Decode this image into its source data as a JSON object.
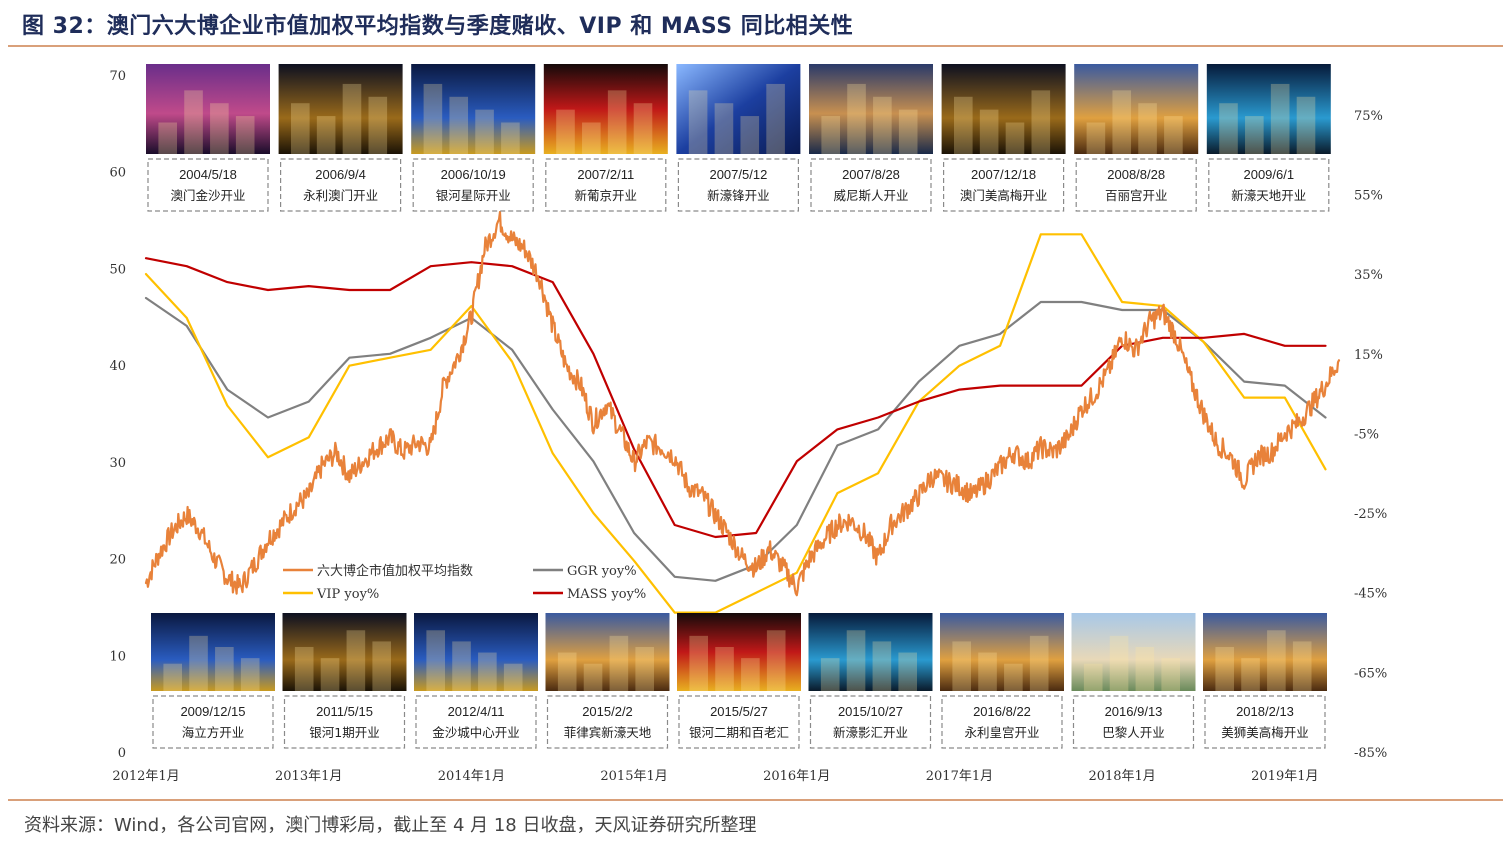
{
  "figure": {
    "title": "图 32：澳门六大博企业市值加权平均指数与季度赌收、VIP 和 MASS 同比相关性",
    "source": "资料来源：Wind，各公司官网，澳门博彩局，截止至 4 月 18 日收盘，天风证券研究所整理"
  },
  "colors": {
    "index": "#e8823a",
    "ggr": "#808080",
    "vip": "#ffc000",
    "mass": "#c00000",
    "title": "#1f2d5a",
    "rule": "#d9a07a"
  },
  "chart_data": {
    "type": "line",
    "x_ticks": [
      "2012年1月",
      "2013年1月",
      "2014年1月",
      "2015年1月",
      "2016年1月",
      "2017年1月",
      "2018年1月",
      "2019年1月"
    ],
    "x_range": [
      2012.0,
      2019.333
    ],
    "y_left": {
      "range": [
        0,
        70
      ],
      "ticks": [
        "0",
        "10",
        "20",
        "30",
        "40",
        "50",
        "60",
        "70"
      ]
    },
    "y_right": {
      "range": [
        -85,
        85
      ],
      "ticks": [
        "-85%",
        "-65%",
        "-45%",
        "-25%",
        "-5%",
        "15%",
        "35%",
        "55%",
        "75%"
      ]
    },
    "grid": false,
    "legend_position": "lower-left",
    "series": [
      {
        "key": "index",
        "name": "六大博企市值加权平均指数",
        "axis": "left",
        "points": [
          [
            2012.0,
            17.5
          ],
          [
            2012.08,
            20.5
          ],
          [
            2012.17,
            23.0
          ],
          [
            2012.25,
            24.5
          ],
          [
            2012.33,
            23.0
          ],
          [
            2012.42,
            20.0
          ],
          [
            2012.5,
            18.0
          ],
          [
            2012.58,
            17.0
          ],
          [
            2012.67,
            19.5
          ],
          [
            2012.75,
            22.0
          ],
          [
            2012.83,
            23.5
          ],
          [
            2012.92,
            25.5
          ],
          [
            2013.0,
            26.5
          ],
          [
            2013.08,
            29.5
          ],
          [
            2013.17,
            31.0
          ],
          [
            2013.25,
            28.5
          ],
          [
            2013.33,
            30.0
          ],
          [
            2013.42,
            31.5
          ],
          [
            2013.5,
            32.5
          ],
          [
            2013.58,
            31.0
          ],
          [
            2013.67,
            32.0
          ],
          [
            2013.75,
            31.5
          ],
          [
            2013.83,
            38.0
          ],
          [
            2013.92,
            41.0
          ],
          [
            2014.0,
            45.0
          ],
          [
            2014.08,
            52.0
          ],
          [
            2014.17,
            55.0
          ],
          [
            2014.25,
            53.0
          ],
          [
            2014.33,
            52.0
          ],
          [
            2014.42,
            49.0
          ],
          [
            2014.5,
            44.0
          ],
          [
            2014.58,
            40.0
          ],
          [
            2014.67,
            38.0
          ],
          [
            2014.75,
            34.0
          ],
          [
            2014.83,
            36.0
          ],
          [
            2014.92,
            33.0
          ],
          [
            2015.0,
            30.0
          ],
          [
            2015.08,
            32.0
          ],
          [
            2015.17,
            31.5
          ],
          [
            2015.25,
            30.5
          ],
          [
            2015.33,
            27.5
          ],
          [
            2015.42,
            26.5
          ],
          [
            2015.5,
            24.5
          ],
          [
            2015.58,
            22.5
          ],
          [
            2015.67,
            20.0
          ],
          [
            2015.75,
            19.0
          ],
          [
            2015.83,
            21.0
          ],
          [
            2015.92,
            19.0
          ],
          [
            2016.0,
            17.0
          ],
          [
            2016.08,
            20.0
          ],
          [
            2016.17,
            22.0
          ],
          [
            2016.25,
            23.5
          ],
          [
            2016.33,
            24.0
          ],
          [
            2016.42,
            22.5
          ],
          [
            2016.5,
            20.0
          ],
          [
            2016.58,
            23.5
          ],
          [
            2016.67,
            25.0
          ],
          [
            2016.75,
            26.5
          ],
          [
            2016.83,
            28.5
          ],
          [
            2016.92,
            28.0
          ],
          [
            2017.0,
            27.5
          ],
          [
            2017.08,
            26.5
          ],
          [
            2017.17,
            28.0
          ],
          [
            2017.25,
            29.5
          ],
          [
            2017.33,
            31.0
          ],
          [
            2017.42,
            30.0
          ],
          [
            2017.5,
            31.5
          ],
          [
            2017.58,
            31.0
          ],
          [
            2017.67,
            32.5
          ],
          [
            2017.75,
            35.5
          ],
          [
            2017.83,
            37.0
          ],
          [
            2017.92,
            39.5
          ],
          [
            2018.0,
            43.0
          ],
          [
            2018.08,
            41.5
          ],
          [
            2018.17,
            44.5
          ],
          [
            2018.25,
            45.5
          ],
          [
            2018.33,
            43.0
          ],
          [
            2018.42,
            38.5
          ],
          [
            2018.5,
            35.0
          ],
          [
            2018.58,
            32.0
          ],
          [
            2018.67,
            30.5
          ],
          [
            2018.75,
            28.0
          ],
          [
            2018.83,
            30.5
          ],
          [
            2018.92,
            31.0
          ],
          [
            2019.0,
            33.0
          ],
          [
            2019.08,
            34.0
          ],
          [
            2019.17,
            36.0
          ],
          [
            2019.25,
            38.0
          ],
          [
            2019.333,
            40.5
          ]
        ]
      },
      {
        "key": "ggr",
        "name": "GGR yoy%",
        "axis": "right",
        "points": [
          [
            2012.0,
            29
          ],
          [
            2012.25,
            22
          ],
          [
            2012.5,
            6
          ],
          [
            2012.75,
            -1
          ],
          [
            2013.0,
            3
          ],
          [
            2013.25,
            14
          ],
          [
            2013.5,
            15
          ],
          [
            2013.75,
            19
          ],
          [
            2014.0,
            24
          ],
          [
            2014.25,
            16
          ],
          [
            2014.5,
            1
          ],
          [
            2014.75,
            -12
          ],
          [
            2015.0,
            -30
          ],
          [
            2015.25,
            -41
          ],
          [
            2015.5,
            -42
          ],
          [
            2015.75,
            -38
          ],
          [
            2016.0,
            -28
          ],
          [
            2016.25,
            -8
          ],
          [
            2016.5,
            -4
          ],
          [
            2016.75,
            8
          ],
          [
            2017.0,
            17
          ],
          [
            2017.25,
            20
          ],
          [
            2017.5,
            28
          ],
          [
            2017.75,
            28
          ],
          [
            2018.0,
            26
          ],
          [
            2018.25,
            26
          ],
          [
            2018.5,
            18
          ],
          [
            2018.75,
            8
          ],
          [
            2019.0,
            7
          ],
          [
            2019.25,
            -1
          ]
        ]
      },
      {
        "key": "vip",
        "name": "VIP yoy%",
        "axis": "right",
        "points": [
          [
            2012.0,
            35
          ],
          [
            2012.25,
            24
          ],
          [
            2012.5,
            2
          ],
          [
            2012.75,
            -11
          ],
          [
            2013.0,
            -6
          ],
          [
            2013.25,
            12
          ],
          [
            2013.5,
            14
          ],
          [
            2013.75,
            16
          ],
          [
            2014.0,
            27
          ],
          [
            2014.25,
            13
          ],
          [
            2014.5,
            -10
          ],
          [
            2014.75,
            -25
          ],
          [
            2015.0,
            -37
          ],
          [
            2015.25,
            -50
          ],
          [
            2015.5,
            -50
          ],
          [
            2015.75,
            -45
          ],
          [
            2016.0,
            -40
          ],
          [
            2016.25,
            -20
          ],
          [
            2016.5,
            -15
          ],
          [
            2016.75,
            3
          ],
          [
            2017.0,
            12
          ],
          [
            2017.25,
            17
          ],
          [
            2017.5,
            45
          ],
          [
            2017.75,
            45
          ],
          [
            2018.0,
            28
          ],
          [
            2018.25,
            27
          ],
          [
            2018.5,
            18
          ],
          [
            2018.75,
            4
          ],
          [
            2019.0,
            4
          ],
          [
            2019.25,
            -14
          ]
        ]
      },
      {
        "key": "mass",
        "name": "MASS yoy%",
        "axis": "right",
        "points": [
          [
            2012.0,
            39
          ],
          [
            2012.25,
            37
          ],
          [
            2012.5,
            33
          ],
          [
            2012.75,
            31
          ],
          [
            2013.0,
            32
          ],
          [
            2013.25,
            31
          ],
          [
            2013.5,
            31
          ],
          [
            2013.75,
            37
          ],
          [
            2014.0,
            38
          ],
          [
            2014.25,
            37
          ],
          [
            2014.5,
            33
          ],
          [
            2014.75,
            15
          ],
          [
            2015.0,
            -9
          ],
          [
            2015.25,
            -28
          ],
          [
            2015.5,
            -31
          ],
          [
            2015.75,
            -30
          ],
          [
            2016.0,
            -12
          ],
          [
            2016.25,
            -4
          ],
          [
            2016.5,
            -1
          ],
          [
            2016.75,
            3
          ],
          [
            2017.0,
            6
          ],
          [
            2017.25,
            7
          ],
          [
            2017.5,
            7
          ],
          [
            2017.75,
            7
          ],
          [
            2018.0,
            17
          ],
          [
            2018.25,
            19
          ],
          [
            2018.5,
            19
          ],
          [
            2018.75,
            20
          ],
          [
            2019.0,
            17
          ],
          [
            2019.25,
            17
          ]
        ]
      }
    ],
    "events_top": [
      {
        "date": "2004/5/18",
        "name": "澳门金沙开业",
        "theme": "night-purple"
      },
      {
        "date": "2006/9/4",
        "name": "永利澳门开业",
        "theme": "night-gold"
      },
      {
        "date": "2006/10/19",
        "name": "银河星际开业",
        "theme": "night-blue"
      },
      {
        "date": "2007/2/11",
        "name": "新葡京开业",
        "theme": "night-red"
      },
      {
        "date": "2007/5/12",
        "name": "新濠锋开业",
        "theme": "glass-blue"
      },
      {
        "date": "2007/8/28",
        "name": "威尼斯人开业",
        "theme": "canal"
      },
      {
        "date": "2007/12/18",
        "name": "澳门美高梅开业",
        "theme": "night-gold"
      },
      {
        "date": "2008/8/28",
        "name": "百丽宫开业",
        "theme": "dusk-gold"
      },
      {
        "date": "2009/6/1",
        "name": "新濠天地开业",
        "theme": "night-cyan"
      }
    ],
    "events_bottom": [
      {
        "date": "2009/12/15",
        "name": "海立方开业",
        "theme": "night-blue"
      },
      {
        "date": "2011/5/15",
        "name": "银河1期开业",
        "theme": "night-gold"
      },
      {
        "date": "2012/4/11",
        "name": "金沙城中心开业",
        "theme": "night-blue"
      },
      {
        "date": "2015/2/2",
        "name": "菲律宾新濠天地",
        "theme": "dusk-gold"
      },
      {
        "date": "2015/5/27",
        "name": "银河二期和百老汇",
        "theme": "night-red"
      },
      {
        "date": "2015/10/27",
        "name": "新濠影汇开业",
        "theme": "night-cyan"
      },
      {
        "date": "2016/8/22",
        "name": "永利皇宫开业",
        "theme": "dusk-gold"
      },
      {
        "date": "2016/9/13",
        "name": "巴黎人开业",
        "theme": "day-sky"
      },
      {
        "date": "2018/2/13",
        "name": "美狮美高梅开业",
        "theme": "dusk-gold"
      }
    ]
  }
}
